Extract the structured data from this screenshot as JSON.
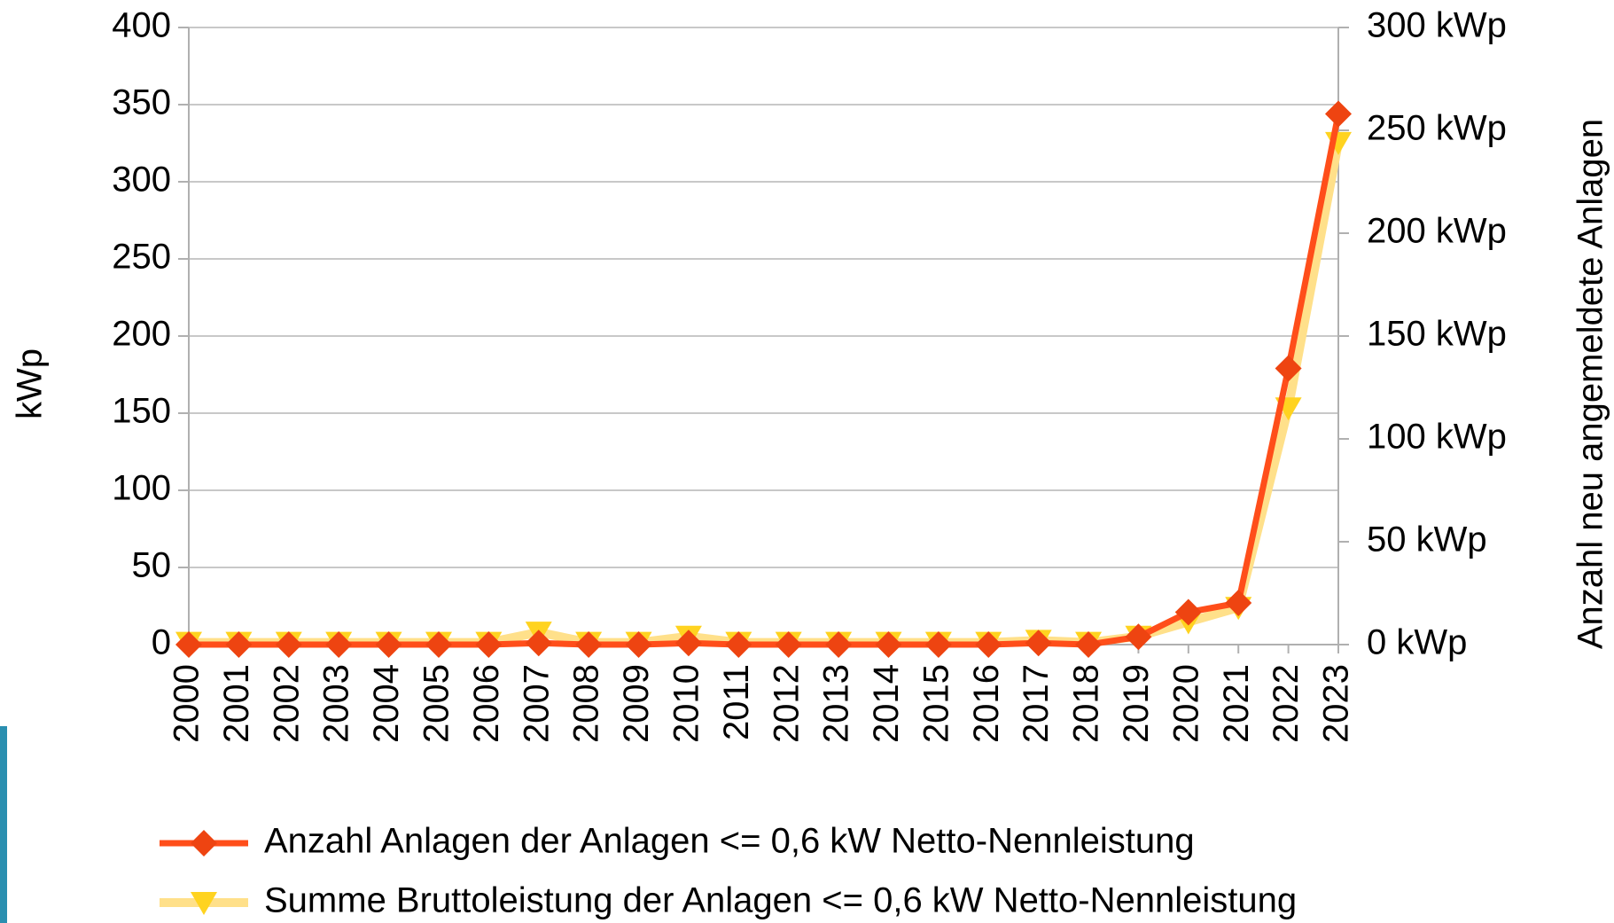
{
  "chart_data": {
    "type": "line",
    "categories": [
      "2000",
      "2001",
      "2002",
      "2003",
      "2004",
      "2005",
      "2006",
      "2007",
      "2008",
      "2009",
      "2010",
      "2011",
      "2012",
      "2013",
      "2014",
      "2015",
      "2016",
      "2017",
      "2018",
      "2019",
      "2020",
      "2021",
      "2022",
      "2023"
    ],
    "series": [
      {
        "name": "Anzahl Anlagen der Anlagen <= 0,6 kW Netto-Nennleistung",
        "color": "#ff4e1a",
        "marker": "diamond",
        "values": [
          0,
          0,
          0,
          0,
          0,
          0,
          0,
          1,
          0,
          0,
          1,
          0,
          0,
          0,
          0,
          0,
          0,
          1,
          0,
          5,
          21,
          27,
          179,
          344
        ]
      },
      {
        "name": "Summe Bruttoleistung der Anlagen <= 0,6 kW Netto-Nennleistung",
        "color": "#ffd320",
        "axis": "y2",
        "marker": "triangle-down",
        "values": [
          1,
          1,
          1,
          1,
          1,
          1,
          1,
          6,
          1,
          1,
          4,
          1,
          1,
          1,
          1,
          1,
          1,
          2,
          1,
          4,
          11,
          18,
          115,
          244
        ]
      }
    ],
    "ylabel": "kWp",
    "y2label": "Anzahl neu angemeldete Anlagen",
    "ylim": [
      0,
      400
    ],
    "yticks": [
      0,
      50,
      100,
      150,
      200,
      250,
      300,
      350,
      400
    ],
    "y2lim": [
      0,
      300
    ],
    "y2ticks": [
      {
        "value": 0,
        "label": "0 kWp"
      },
      {
        "value": 50,
        "label": "50 kWp"
      },
      {
        "value": 100,
        "label": "100 kWp"
      },
      {
        "value": 150,
        "label": "150 kWp"
      },
      {
        "value": 200,
        "label": "200 kWp"
      },
      {
        "value": 250,
        "label": "250 kWp"
      },
      {
        "value": 300,
        "label": "300 kWp"
      }
    ],
    "grid": true,
    "legend": "bottom"
  }
}
